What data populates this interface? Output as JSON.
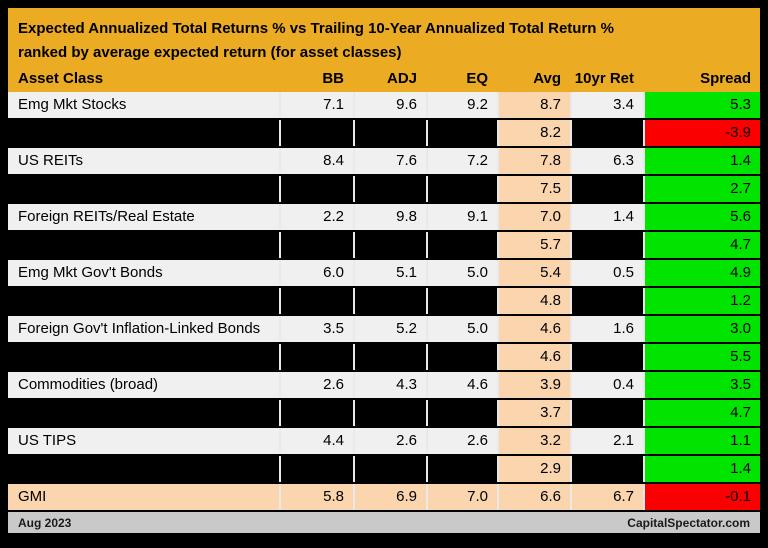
{
  "title": "Expected Annualized Total Returns % vs Trailing 10-Year Annualized Total Return %",
  "subtitle": "ranked by average expected return (for asset classes)",
  "columns": [
    "Asset Class",
    "BB",
    "ADJ",
    "EQ",
    "Avg",
    "10yr Ret",
    "Spread"
  ],
  "footer": {
    "left": "Aug 2023",
    "right": "CapitalSpectator.com"
  },
  "colors": {
    "header_gold": "#EBAC23",
    "row_light": "#F0F0F0",
    "row_black": "#000000",
    "avg_peach": "#FAD5AE",
    "spread_positive_green": "#00E400",
    "spread_negative_red": "#FB0000",
    "footer_gray": "#C9C9C9",
    "outer_border_black": "#000000"
  },
  "chart_data": {
    "type": "table",
    "title": "Expected Annualized Total Returns % vs Trailing 10-Year Annualized Total Return % ranked by average expected return (for asset classes)",
    "columns": [
      "Asset Class",
      "BB",
      "ADJ",
      "EQ",
      "Avg",
      "10yr Ret",
      "Spread"
    ],
    "rows": [
      {
        "kind": "asset",
        "asset_class": "Emg Mkt Stocks",
        "bb": 7.1,
        "adj": 9.6,
        "eq": 9.2,
        "avg": 8.7,
        "ten_yr_ret": 3.4,
        "spread": 5.3,
        "spread_color": "green"
      },
      {
        "kind": "redacted",
        "asset_class": "",
        "bb": null,
        "adj": null,
        "eq": null,
        "avg": 8.2,
        "ten_yr_ret": null,
        "spread": -3.9,
        "spread_color": "red"
      },
      {
        "kind": "asset",
        "asset_class": "US REITs",
        "bb": 8.4,
        "adj": 7.6,
        "eq": 7.2,
        "avg": 7.8,
        "ten_yr_ret": 6.3,
        "spread": 1.4,
        "spread_color": "green"
      },
      {
        "kind": "redacted",
        "asset_class": "",
        "bb": null,
        "adj": null,
        "eq": null,
        "avg": 7.5,
        "ten_yr_ret": null,
        "spread": 2.7,
        "spread_color": "green"
      },
      {
        "kind": "asset",
        "asset_class": "Foreign REITs/Real Estate",
        "bb": 2.2,
        "adj": 9.8,
        "eq": 9.1,
        "avg": 7.0,
        "ten_yr_ret": 1.4,
        "spread": 5.6,
        "spread_color": "green"
      },
      {
        "kind": "redacted",
        "asset_class": "",
        "bb": null,
        "adj": null,
        "eq": null,
        "avg": 5.7,
        "ten_yr_ret": null,
        "spread": 4.7,
        "spread_color": "green"
      },
      {
        "kind": "asset",
        "asset_class": "Emg Mkt Gov't Bonds",
        "bb": 6.0,
        "adj": 5.1,
        "eq": 5.0,
        "avg": 5.4,
        "ten_yr_ret": 0.5,
        "spread": 4.9,
        "spread_color": "green"
      },
      {
        "kind": "redacted",
        "asset_class": "",
        "bb": null,
        "adj": null,
        "eq": null,
        "avg": 4.8,
        "ten_yr_ret": null,
        "spread": 1.2,
        "spread_color": "green"
      },
      {
        "kind": "asset",
        "asset_class": "Foreign Gov't Inflation-Linked Bonds",
        "bb": 3.5,
        "adj": 5.2,
        "eq": 5.0,
        "avg": 4.6,
        "ten_yr_ret": 1.6,
        "spread": 3.0,
        "spread_color": "green"
      },
      {
        "kind": "redacted",
        "asset_class": "",
        "bb": null,
        "adj": null,
        "eq": null,
        "avg": 4.6,
        "ten_yr_ret": null,
        "spread": 5.5,
        "spread_color": "green"
      },
      {
        "kind": "asset",
        "asset_class": "Commodities (broad)",
        "bb": 2.6,
        "adj": 4.3,
        "eq": 4.6,
        "avg": 3.9,
        "ten_yr_ret": 0.4,
        "spread": 3.5,
        "spread_color": "green"
      },
      {
        "kind": "redacted",
        "asset_class": "",
        "bb": null,
        "adj": null,
        "eq": null,
        "avg": 3.7,
        "ten_yr_ret": null,
        "spread": 4.7,
        "spread_color": "green"
      },
      {
        "kind": "asset",
        "asset_class": "US TIPS",
        "bb": 4.4,
        "adj": 2.6,
        "eq": 2.6,
        "avg": 3.2,
        "ten_yr_ret": 2.1,
        "spread": 1.1,
        "spread_color": "green"
      },
      {
        "kind": "redacted",
        "asset_class": "",
        "bb": null,
        "adj": null,
        "eq": null,
        "avg": 2.9,
        "ten_yr_ret": null,
        "spread": 1.4,
        "spread_color": "green"
      },
      {
        "kind": "summary",
        "asset_class": "GMI",
        "bb": 5.8,
        "adj": 6.9,
        "eq": 7.0,
        "avg": 6.6,
        "ten_yr_ret": 6.7,
        "spread": -0.1,
        "spread_color": "red"
      }
    ]
  }
}
